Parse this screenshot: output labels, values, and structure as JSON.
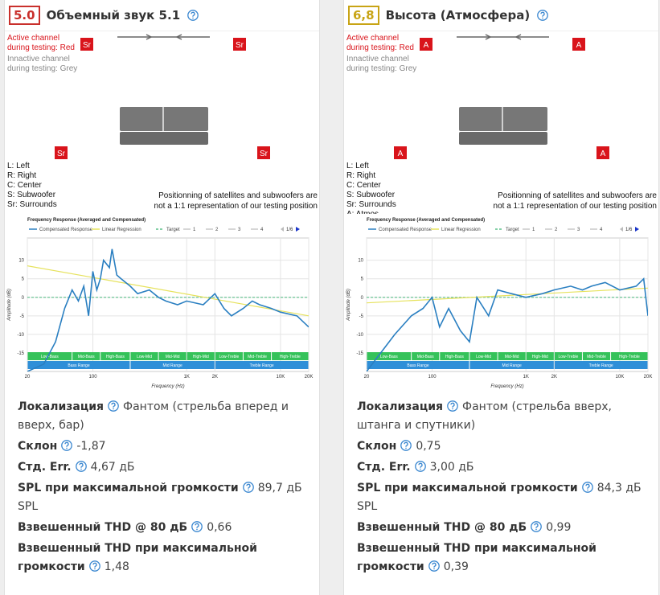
{
  "cards": [
    {
      "score": "5.0",
      "score_color": "#c9302c",
      "title": "Объемный звук 5.1",
      "diagram": {
        "active_note": [
          "Active channel",
          "during testing: Red"
        ],
        "inactive_note": [
          "Innactive channel",
          "during testing: Grey"
        ],
        "speaker_label": "Sr",
        "key": [
          "L: Left",
          "R: Right",
          "C: Center",
          "S: Subwoofer",
          "Sr: Surrounds"
        ],
        "disclaimer": [
          "Positionning of satellites and subwoofers are",
          "not a 1:1 representation of our testing position"
        ]
      },
      "chart": {
        "type": "line",
        "title": "Frequency Response (Averaged and Compensated)",
        "x_label": "Frequency (Hz)",
        "y_label": "Amplitude (dB)",
        "xlim": [
          20,
          20000
        ],
        "ylim": [
          -20,
          16
        ],
        "log_x": true,
        "xticks": [
          20,
          100,
          {
            "value": 1000,
            "label": "1K"
          },
          {
            "value": 2000,
            "label": "2K"
          },
          {
            "value": 10000,
            "label": "10K"
          },
          {
            "value": 20000,
            "label": "20K"
          }
        ],
        "yticks": [
          10,
          5,
          0,
          -5,
          -10,
          -15
        ],
        "series": [
          {
            "name": "Compensated Response",
            "color": "#2a7fc1",
            "x": [
              20,
              30,
              40,
              50,
              60,
              70,
              80,
              90,
              100,
              110,
              120,
              130,
              150,
              160,
              180,
              200,
              250,
              300,
              400,
              500,
              600,
              800,
              1000,
              1500,
              2000,
              2500,
              3000,
              4000,
              5000,
              6000,
              8000,
              10000,
              15000,
              20000
            ],
            "values": [
              -20,
              -18,
              -12,
              -3,
              2,
              -1,
              3,
              -5,
              7,
              2,
              5,
              10,
              8,
              13,
              6,
              5,
              3,
              1,
              2,
              0,
              -1,
              -2,
              -1,
              -2,
              1,
              -3,
              -5,
              -3,
              -1,
              -2,
              -3,
              -4,
              -5,
              -8
            ]
          },
          {
            "name": "Linear Regression",
            "color": "#e6e25c",
            "x": [
              20,
              20000
            ],
            "values": [
              8.5,
              -5
            ]
          },
          {
            "name": "Target",
            "color": "#5cc08a",
            "x": [
              20,
              20000
            ],
            "values": [
              0,
              0
            ]
          }
        ],
        "extra_legend": [
          "1",
          "2",
          "3",
          "4"
        ],
        "page": "1/6",
        "bands": [
          {
            "label": "Low-Bass",
            "from": 20,
            "to": 60
          },
          {
            "label": "Mid-Bass",
            "from": 60,
            "to": 120
          },
          {
            "label": "High-Bass",
            "from": 120,
            "to": 250
          },
          {
            "label": "Low-Mid",
            "from": 250,
            "to": 500
          },
          {
            "label": "Mid-Mid",
            "from": 500,
            "to": 1000
          },
          {
            "label": "High-Mid",
            "from": 1000,
            "to": 2000
          },
          {
            "label": "Low-Treble",
            "from": 2000,
            "to": 4000
          },
          {
            "label": "Mid-Treble",
            "from": 4000,
            "to": 8000
          },
          {
            "label": "High-Treble",
            "from": 8000,
            "to": 20000
          }
        ],
        "ranges": [
          {
            "label": "Bass Range",
            "from": 20,
            "to": 250
          },
          {
            "label": "Mid Range",
            "from": 250,
            "to": 2000
          },
          {
            "label": "Treble Range",
            "from": 2000,
            "to": 20000
          }
        ]
      },
      "specs": [
        {
          "label": "Локализация",
          "value": "Фантом (стрельба вперед и вверх, бар)"
        },
        {
          "label": "Склон",
          "value": "-1,87"
        },
        {
          "label": "Стд. Err.",
          "value": "4,67 дБ"
        },
        {
          "label": "SPL при максимальной громкости",
          "value": "89,7 дБ SPL"
        },
        {
          "label": "Взвешенный THD @ 80 дБ",
          "value": "0,66"
        },
        {
          "label": "Взвешенный THD при максимальной громкости",
          "value": "1,48"
        }
      ]
    },
    {
      "score": "6,8",
      "score_color": "#c8a415",
      "title": "Высота (Атмосфера)",
      "diagram": {
        "active_note": [
          "Active channel",
          "during testing: Red"
        ],
        "inactive_note": [
          "Innactive channel",
          "during testing: Grey"
        ],
        "speaker_label": "A",
        "key": [
          "L: Left",
          "R: Right",
          "C: Center",
          "S: Subwoofer",
          "Sr: Surrounds",
          "A: Atmos"
        ],
        "disclaimer": [
          "Positionning of satellites and subwoofers are",
          "not a 1:1 representation of our testing position"
        ]
      },
      "chart": {
        "type": "line",
        "title": "Frequency Response (Averaged and Compensated)",
        "x_label": "Frequency (Hz)",
        "y_label": "Amplitude (dB)",
        "xlim": [
          20,
          20000
        ],
        "ylim": [
          -20,
          16
        ],
        "log_x": true,
        "xticks": [
          20,
          100,
          {
            "value": 1000,
            "label": "1K"
          },
          {
            "value": 2000,
            "label": "2K"
          },
          {
            "value": 10000,
            "label": "10K"
          },
          {
            "value": 20000,
            "label": "20K"
          }
        ],
        "yticks": [
          10,
          5,
          0,
          -5,
          -10,
          -15
        ],
        "series": [
          {
            "name": "Compensated Response",
            "color": "#2a7fc1",
            "x": [
              20,
              40,
              60,
              80,
              100,
              120,
              150,
              200,
              250,
              300,
              400,
              500,
              700,
              1000,
              1500,
              2000,
              3000,
              4000,
              5000,
              7000,
              10000,
              15000,
              18000,
              20000
            ],
            "values": [
              -20,
              -10,
              -5,
              -3,
              0,
              -8,
              -3,
              -9,
              -12,
              0,
              -5,
              2,
              1,
              0,
              1,
              2,
              3,
              2,
              3,
              4,
              2,
              3,
              5,
              -5
            ]
          },
          {
            "name": "Linear Regression",
            "color": "#e6e25c",
            "x": [
              20,
              20000
            ],
            "values": [
              -1.5,
              2.5
            ]
          },
          {
            "name": "Target",
            "color": "#5cc08a",
            "x": [
              20,
              20000
            ],
            "values": [
              0,
              0
            ]
          }
        ],
        "extra_legend": [
          "1",
          "2",
          "3",
          "4"
        ],
        "page": "1/6",
        "bands": [
          {
            "label": "Low-Bass",
            "from": 20,
            "to": 60
          },
          {
            "label": "Mid-Bass",
            "from": 60,
            "to": 120
          },
          {
            "label": "High-Bass",
            "from": 120,
            "to": 250
          },
          {
            "label": "Low-Mid",
            "from": 250,
            "to": 500
          },
          {
            "label": "Mid-Mid",
            "from": 500,
            "to": 1000
          },
          {
            "label": "High-Mid",
            "from": 1000,
            "to": 2000
          },
          {
            "label": "Low-Treble",
            "from": 2000,
            "to": 4000
          },
          {
            "label": "Mid-Treble",
            "from": 4000,
            "to": 8000
          },
          {
            "label": "High-Treble",
            "from": 8000,
            "to": 20000
          }
        ],
        "ranges": [
          {
            "label": "Bass Range",
            "from": 20,
            "to": 250
          },
          {
            "label": "Mid Range",
            "from": 250,
            "to": 2000
          },
          {
            "label": "Treble Range",
            "from": 2000,
            "to": 20000
          }
        ]
      },
      "specs": [
        {
          "label": "Локализация",
          "value": "Фантом (стрельба вверх, штанга и спутники)"
        },
        {
          "label": "Склон",
          "value": "0,75"
        },
        {
          "label": "Стд. Err.",
          "value": "3,00 дБ"
        },
        {
          "label": "SPL при максимальной громкости",
          "value": "84,3 дБ SPL"
        },
        {
          "label": "Взвешенный THD @ 80 дБ",
          "value": "0,99"
        },
        {
          "label": "Взвешенный THD при максимальной громкости",
          "value": "0,39"
        }
      ]
    }
  ]
}
